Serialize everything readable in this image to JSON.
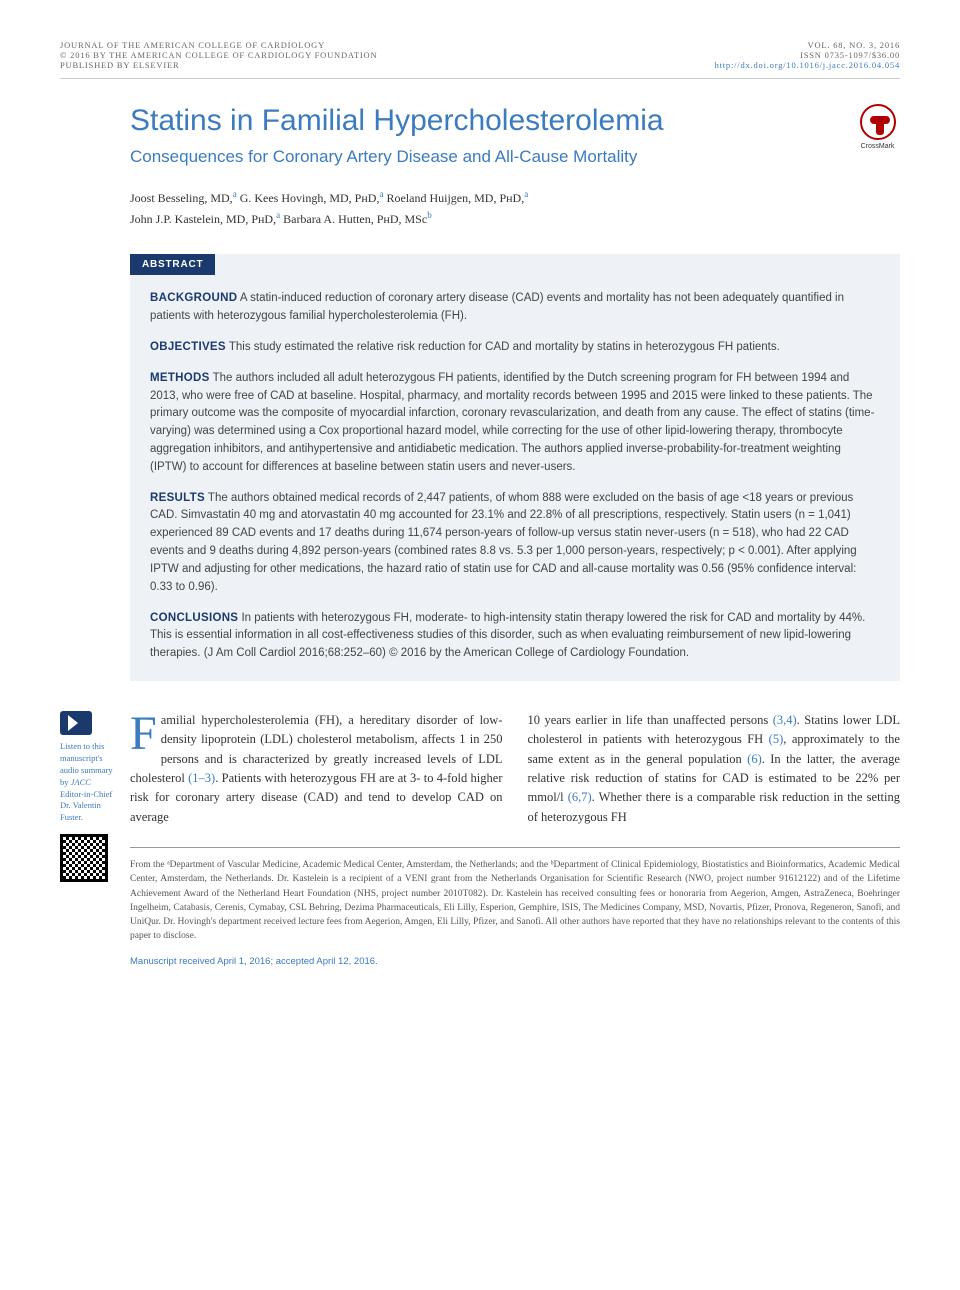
{
  "header": {
    "journal": "JOURNAL OF THE AMERICAN COLLEGE OF CARDIOLOGY",
    "copyright": "© 2016 BY THE AMERICAN COLLEGE OF CARDIOLOGY FOUNDATION",
    "publisher": "PUBLISHED BY ELSEVIER",
    "vol_issue": "VOL. 68, NO. 3, 2016",
    "issn": "ISSN 0735-1097/$36.00",
    "doi": "http://dx.doi.org/10.1016/j.jacc.2016.04.054"
  },
  "title": "Statins in Familial Hypercholesterolemia",
  "subtitle": "Consequences for Coronary Artery Disease and All-Cause Mortality",
  "crossmark_label": "CrossMark",
  "authors": [
    {
      "name": "Joost Besseling, MD,",
      "aff": "a"
    },
    {
      "name": "G. Kees Hovingh, MD, PʜD,",
      "aff": "a"
    },
    {
      "name": "Roeland Huijgen, MD, PʜD,",
      "aff": "a"
    },
    {
      "name": "John J.P. Kastelein, MD, PʜD,",
      "aff": "a"
    },
    {
      "name": "Barbara A. Hutten, PʜD, MSc",
      "aff": "b"
    }
  ],
  "abstract_label": "ABSTRACT",
  "abstract": {
    "background": {
      "heading": "BACKGROUND",
      "text": "A statin-induced reduction of coronary artery disease (CAD) events and mortality has not been adequately quantified in patients with heterozygous familial hypercholesterolemia (FH)."
    },
    "objectives": {
      "heading": "OBJECTIVES",
      "text": "This study estimated the relative risk reduction for CAD and mortality by statins in heterozygous FH patients."
    },
    "methods": {
      "heading": "METHODS",
      "text": "The authors included all adult heterozygous FH patients, identified by the Dutch screening program for FH between 1994 and 2013, who were free of CAD at baseline. Hospital, pharmacy, and mortality records between 1995 and 2015 were linked to these patients. The primary outcome was the composite of myocardial infarction, coronary revascularization, and death from any cause. The effect of statins (time-varying) was determined using a Cox proportional hazard model, while correcting for the use of other lipid-lowering therapy, thrombocyte aggregation inhibitors, and antihypertensive and antidiabetic medication. The authors applied inverse-probability-for-treatment weighting (IPTW) to account for differences at baseline between statin users and never-users."
    },
    "results": {
      "heading": "RESULTS",
      "text": "The authors obtained medical records of 2,447 patients, of whom 888 were excluded on the basis of age <18 years or previous CAD. Simvastatin 40 mg and atorvastatin 40 mg accounted for 23.1% and 22.8% of all prescriptions, respectively. Statin users (n = 1,041) experienced 89 CAD events and 17 deaths during 11,674 person-years of follow-up versus statin never-users (n = 518), who had 22 CAD events and 9 deaths during 4,892 person-years (combined rates 8.8 vs. 5.3 per 1,000 person-years, respectively; p < 0.001). After applying IPTW and adjusting for other medications, the hazard ratio of statin use for CAD and all-cause mortality was 0.56 (95% confidence interval: 0.33 to 0.96)."
    },
    "conclusions": {
      "heading": "CONCLUSIONS",
      "text": "In patients with heterozygous FH, moderate- to high-intensity statin therapy lowered the risk for CAD and mortality by 44%. This is essential information in all cost-effectiveness studies of this disorder, such as when evaluating reimbursement of new lipid-lowering therapies. (J Am Coll Cardiol 2016;68:252–60) © 2016 by the American College of Cardiology Foundation."
    }
  },
  "body": {
    "col1_first": "F",
    "col1_rest": "amilial hypercholesterolemia (FH), a hereditary disorder of low-density lipoprotein (LDL) cholesterol metabolism, affects 1 in 250 persons and is characterized by greatly increased levels of LDL cholesterol ",
    "col1_cite1": "(1–3)",
    "col1_after1": ". Patients with heterozygous FH are at 3- to 4-fold higher risk for coronary artery disease (CAD) and tend to develop CAD on average",
    "col2_start": "10 years earlier in life than unaffected persons ",
    "col2_cite1": "(3,4)",
    "col2_after1": ". Statins lower LDL cholesterol in patients with heterozygous FH ",
    "col2_cite2": "(5)",
    "col2_after2": ", approximately to the same extent as in the general population ",
    "col2_cite3": "(6)",
    "col2_after3": ". In the latter, the average relative risk reduction of statins for CAD is estimated to be 22% per mmol/l ",
    "col2_cite4": "(6,7)",
    "col2_after4": ". Whether there is a comparable risk reduction in the setting of heterozygous FH"
  },
  "audio_note": {
    "line1": "Listen to this manuscript's audio summary by",
    "line2_italic": "JACC",
    "line2_rest": " Editor-in-Chief Dr. Valentin Fuster."
  },
  "footnotes": "From the ᵃDepartment of Vascular Medicine, Academic Medical Center, Amsterdam, the Netherlands; and the ᵇDepartment of Clinical Epidemiology, Biostatistics and Bioinformatics, Academic Medical Center, Amsterdam, the Netherlands. Dr. Kastelein is a recipient of a VENI grant from the Netherlands Organisation for Scientific Research (NWO, project number 91612122) and of the Lifetime Achievement Award of the Netherland Heart Foundation (NHS, project number 2010T082). Dr. Kastelein has received consulting fees or honoraria from Aegerion, Amgen, AstraZeneca, Boehringer Ingelheim, Catabasis, Cerenis, Cymabay, CSL Behring, Dezima Pharmaceuticals, Eli Lilly, Esperion, Gemphire, ISIS, The Medicines Company, MSD, Novartis, Pfizer, Pronova, Regeneron, Sanofi, and UniQur. Dr. Hovingh's department received lecture fees from Aegerion, Amgen, Eli Lilly, Pfizer, and Sanofi. All other authors have reported that they have no relationships relevant to the contents of this paper to disclose.",
  "manuscript_dates": "Manuscript received April 1, 2016; accepted April 12, 2016.",
  "colors": {
    "brand_blue": "#3b7bbf",
    "dark_blue": "#1a3a6e",
    "abstract_bg": "#eef2f6",
    "text": "#333333",
    "text_light": "#666666"
  }
}
